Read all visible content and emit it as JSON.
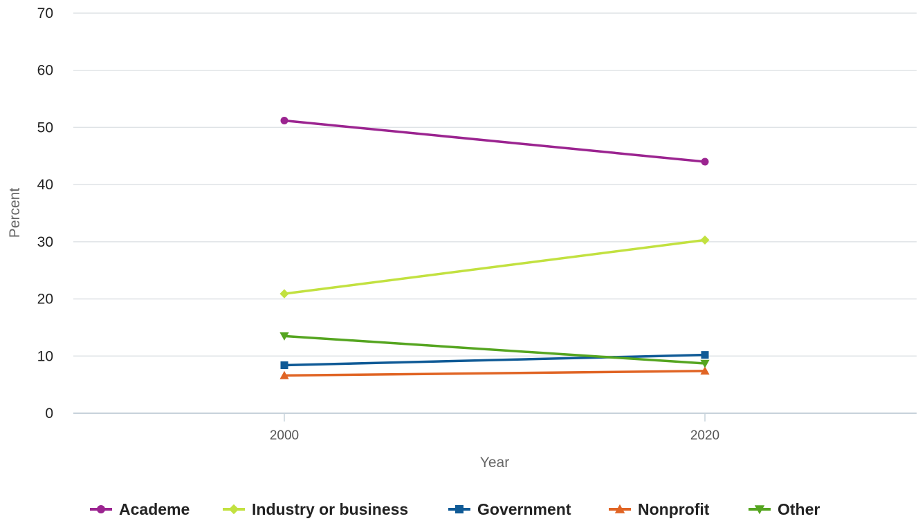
{
  "chart_data": {
    "type": "line",
    "title": "",
    "xlabel": "Year",
    "ylabel": "Percent",
    "x": [
      "2000",
      "2020"
    ],
    "ylim": [
      0,
      70
    ],
    "yticks": [
      0,
      10,
      20,
      30,
      40,
      50,
      60,
      70
    ],
    "grid": true,
    "legend": "bottom",
    "series": [
      {
        "name": "Academe",
        "values": [
          51.2,
          44.0
        ],
        "color": "#9b2490",
        "marker": "circle"
      },
      {
        "name": "Industry or business",
        "values": [
          20.9,
          30.3
        ],
        "color": "#c2e140",
        "marker": "diamond"
      },
      {
        "name": "Government",
        "values": [
          8.4,
          10.2
        ],
        "color": "#0f5a96",
        "marker": "square"
      },
      {
        "name": "Nonprofit",
        "values": [
          6.6,
          7.4
        ],
        "color": "#e06424",
        "marker": "triangle-up"
      },
      {
        "name": "Other",
        "values": [
          13.5,
          8.7
        ],
        "color": "#55a520",
        "marker": "triangle-down"
      }
    ]
  }
}
